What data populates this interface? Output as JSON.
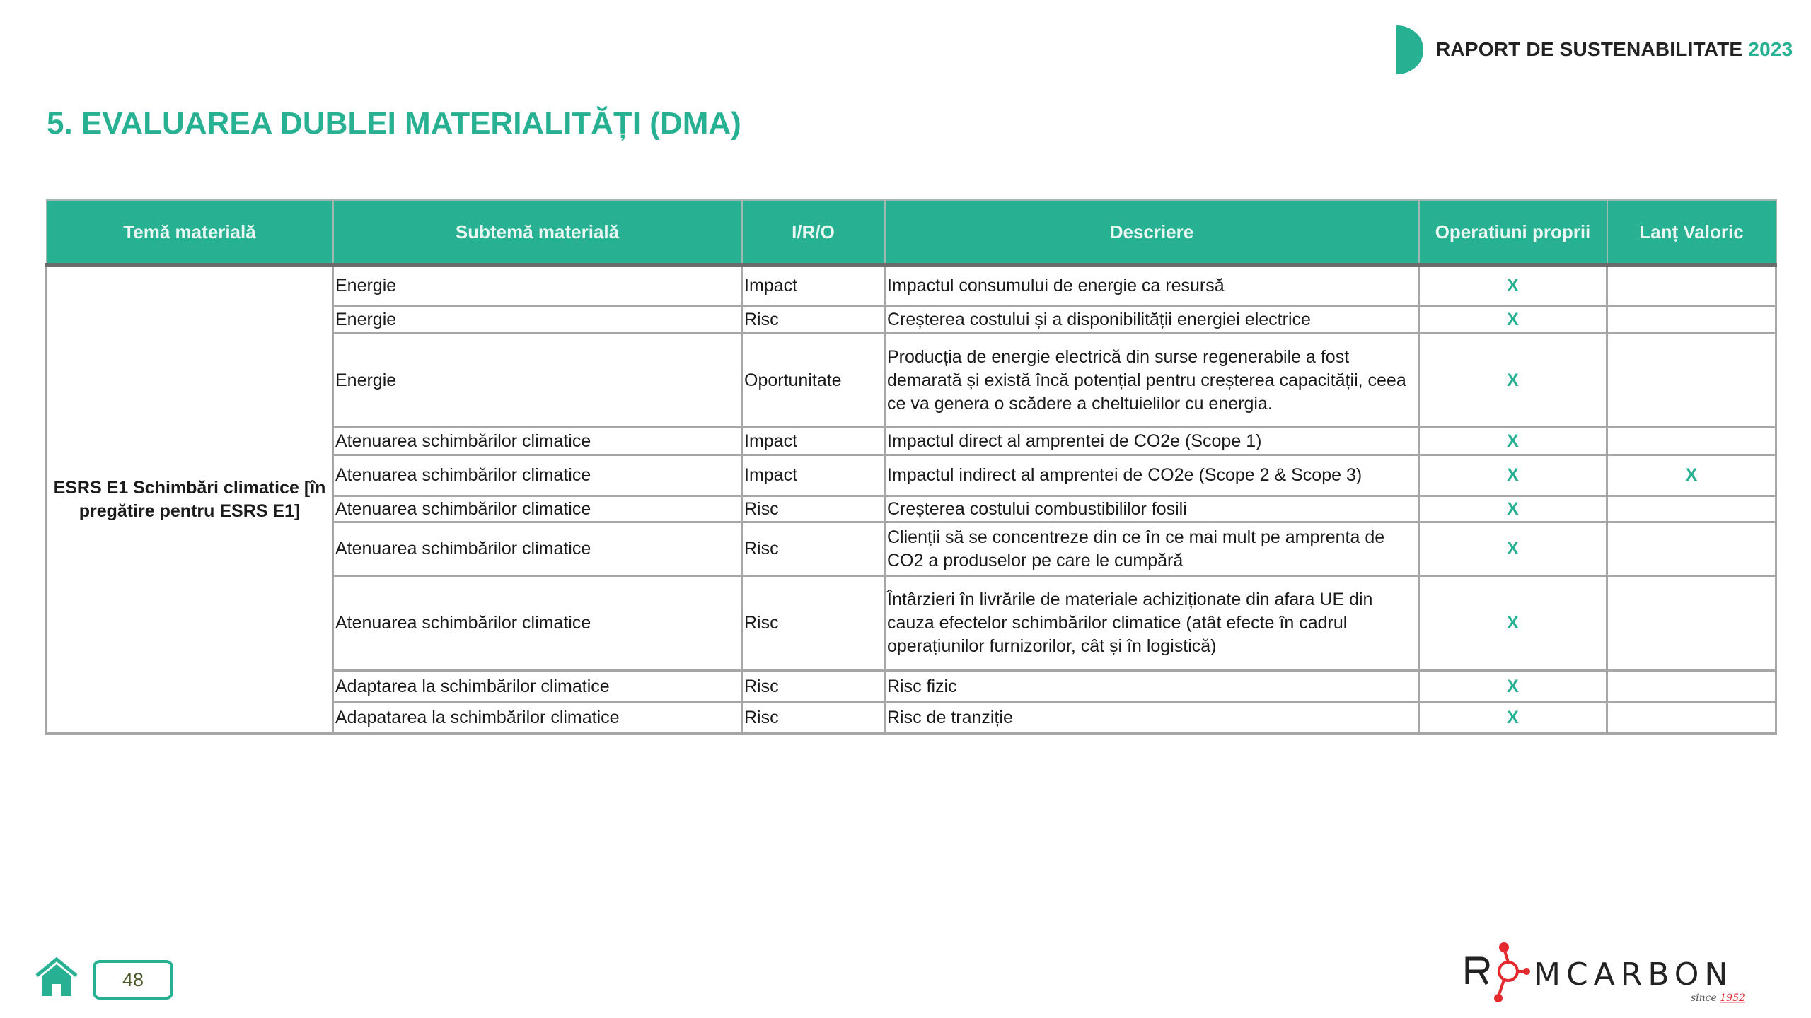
{
  "header": {
    "report_title": "RAPORT DE SUSTENABILITATE",
    "report_year": "2023"
  },
  "page_title": "5. EVALUAREA DUBLEI MATERIALITĂȚI (DMA)",
  "table": {
    "columns": [
      "Temă materială",
      "Subtemă materială",
      "I/R/O",
      "Descriere",
      "Operatiuni proprii",
      "Lanț Valoric"
    ],
    "theme": "ESRS E1 Schimbări climatice [în pregătire pentru ESRS E1]",
    "rows": [
      {
        "subtopic": "Energie",
        "iro": "Impact",
        "description": "Impactul consumului de energie ca resursă",
        "own_operations": "X",
        "value_chain": ""
      },
      {
        "subtopic": "Energie",
        "iro": "Risc",
        "description": "Creșterea costului și a disponibilității energiei electrice",
        "own_operations": "X",
        "value_chain": ""
      },
      {
        "subtopic": "Energie",
        "iro": "Oportunitate",
        "description": "Producția de energie electrică din surse regenerabile a fost demarată și există încă potențial pentru creșterea capacității, ceea ce va genera o scădere a cheltuielilor cu energia.",
        "own_operations": "X",
        "value_chain": ""
      },
      {
        "subtopic": "Atenuarea schimbărilor climatice",
        "iro": "Impact",
        "description": "Impactul direct al amprentei de CO2e (Scope 1)",
        "own_operations": "X",
        "value_chain": ""
      },
      {
        "subtopic": "Atenuarea schimbărilor climatice",
        "iro": "Impact",
        "description": "Impactul indirect al amprentei de CO2e (Scope 2 & Scope 3)",
        "own_operations": "X",
        "value_chain": "X"
      },
      {
        "subtopic": "Atenuarea schimbărilor climatice",
        "iro": "Risc",
        "description": "Creșterea costului combustibililor fosili",
        "own_operations": "X",
        "value_chain": ""
      },
      {
        "subtopic": "Atenuarea schimbărilor climatice",
        "iro": "Risc",
        "description": "Clienții să se concentreze din ce în ce mai mult pe amprenta de CO2 a produselor pe care le cumpără",
        "own_operations": "X",
        "value_chain": ""
      },
      {
        "subtopic": "Atenuarea schimbărilor climatice",
        "iro": "Risc",
        "description": "Întârzieri în livrările de materiale achiziționate din afara UE din cauza efectelor schimbărilor climatice (atât efecte în cadrul operațiunilor furnizorilor, cât și în logistică)",
        "own_operations": "X",
        "value_chain": ""
      },
      {
        "subtopic": "Adaptarea la schimbărilor climatice",
        "iro": "Risc",
        "description": "Risc fizic",
        "own_operations": "X",
        "value_chain": ""
      },
      {
        "subtopic": "Adapatarea la schimbărilor climatice",
        "iro": "Risc",
        "description": "Risc de tranziție",
        "own_operations": "X",
        "value_chain": ""
      }
    ]
  },
  "footer": {
    "page_number": "48",
    "home_icon": "home-icon",
    "logo_text": "ROMCARBON",
    "logo_tagline": "since 1952"
  },
  "colors": {
    "accent": "#27b092",
    "logo_red": "#e52a2f"
  }
}
